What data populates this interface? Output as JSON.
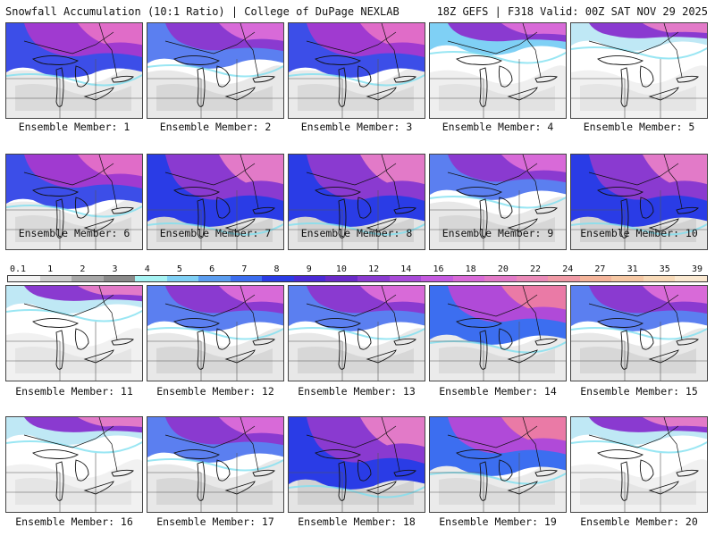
{
  "header": {
    "title_left": "Snowfall Accumulation (10:1 Ratio) | College of DuPage NEXLAB",
    "title_right": "18Z GEFS | F318 Valid: 00Z SAT NOV 29 2025"
  },
  "colorbar": {
    "labels": [
      "0.1",
      "1",
      "2",
      "3",
      "4",
      "5",
      "6",
      "7",
      "8",
      "9",
      "10",
      "12",
      "14",
      "16",
      "18",
      "20",
      "22",
      "24",
      "27",
      "31",
      "35",
      "39"
    ],
    "colors": [
      "#f2f2f2",
      "#cfcfcf",
      "#a8a8a8",
      "#8a8a8a",
      "#a6f3f3",
      "#7fd0f5",
      "#5b9df0",
      "#3c6ef0",
      "#2a3ce6",
      "#4a2ad6",
      "#6a2ac8",
      "#8a3ad0",
      "#a84ad8",
      "#c45ae0",
      "#d86ad8",
      "#e27ac8",
      "#ea8ab8",
      "#f09aa6",
      "#f4b49a",
      "#f6c8a4",
      "#f8dab8",
      "#fae8d0"
    ]
  },
  "members": [
    {
      "label": "Ensemble Member: 1",
      "snow": "heavy-north"
    },
    {
      "label": "Ensemble Member: 2",
      "snow": "moderate-north"
    },
    {
      "label": "Ensemble Member: 3",
      "snow": "heavy-north"
    },
    {
      "label": "Ensemble Member: 4",
      "snow": "light-north"
    },
    {
      "label": "Ensemble Member: 5",
      "snow": "light"
    },
    {
      "label": "Ensemble Member: 6",
      "snow": "heavy-north"
    },
    {
      "label": "Ensemble Member: 7",
      "snow": "heavy"
    },
    {
      "label": "Ensemble Member: 8",
      "snow": "heavy"
    },
    {
      "label": "Ensemble Member: 9",
      "snow": "moderate-north"
    },
    {
      "label": "Ensemble Member: 10",
      "snow": "heavy"
    },
    {
      "label": "Ensemble Member: 11",
      "snow": "light"
    },
    {
      "label": "Ensemble Member: 12",
      "snow": "moderate-north"
    },
    {
      "label": "Ensemble Member: 13",
      "snow": "moderate-north"
    },
    {
      "label": "Ensemble Member: 14",
      "snow": "heavy-northwest"
    },
    {
      "label": "Ensemble Member: 15",
      "snow": "moderate-north"
    },
    {
      "label": "Ensemble Member: 16",
      "snow": "light"
    },
    {
      "label": "Ensemble Member: 17",
      "snow": "moderate-north"
    },
    {
      "label": "Ensemble Member: 18",
      "snow": "heavy"
    },
    {
      "label": "Ensemble Member: 19",
      "snow": "heavy-northwest"
    },
    {
      "label": "Ensemble Member: 20",
      "snow": "light"
    }
  ]
}
